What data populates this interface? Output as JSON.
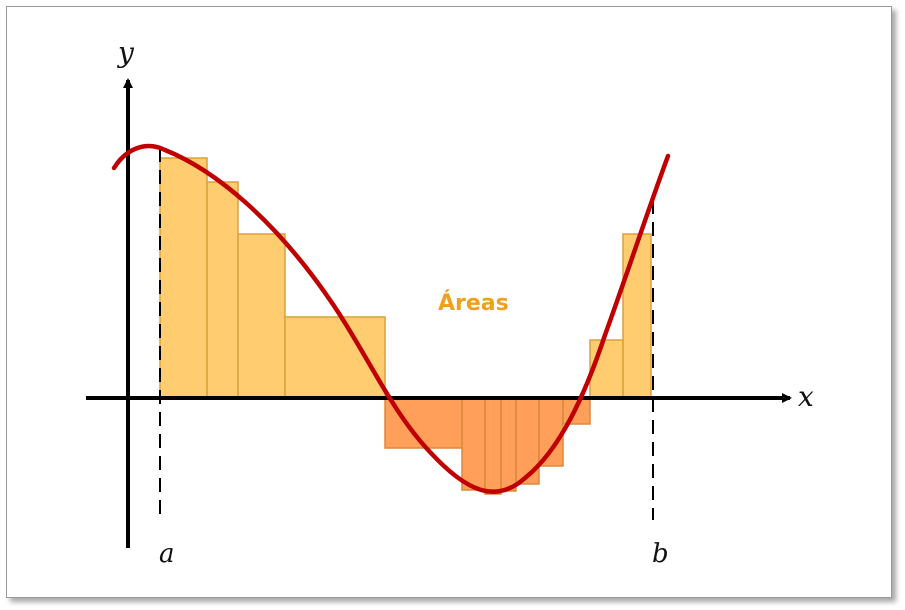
{
  "labels": {
    "y_axis": "y",
    "x_axis": "x",
    "left_bound": "a",
    "right_bound": "b",
    "areas": "Áreas"
  },
  "colors": {
    "curve": "#c00000",
    "positive_fill": "#ffcc70",
    "positive_stroke": "#d9a23c",
    "negative_fill": "#ff9f5a",
    "negative_stroke": "#d98a3c",
    "axis": "#000000",
    "label": "#f0a020"
  }
}
